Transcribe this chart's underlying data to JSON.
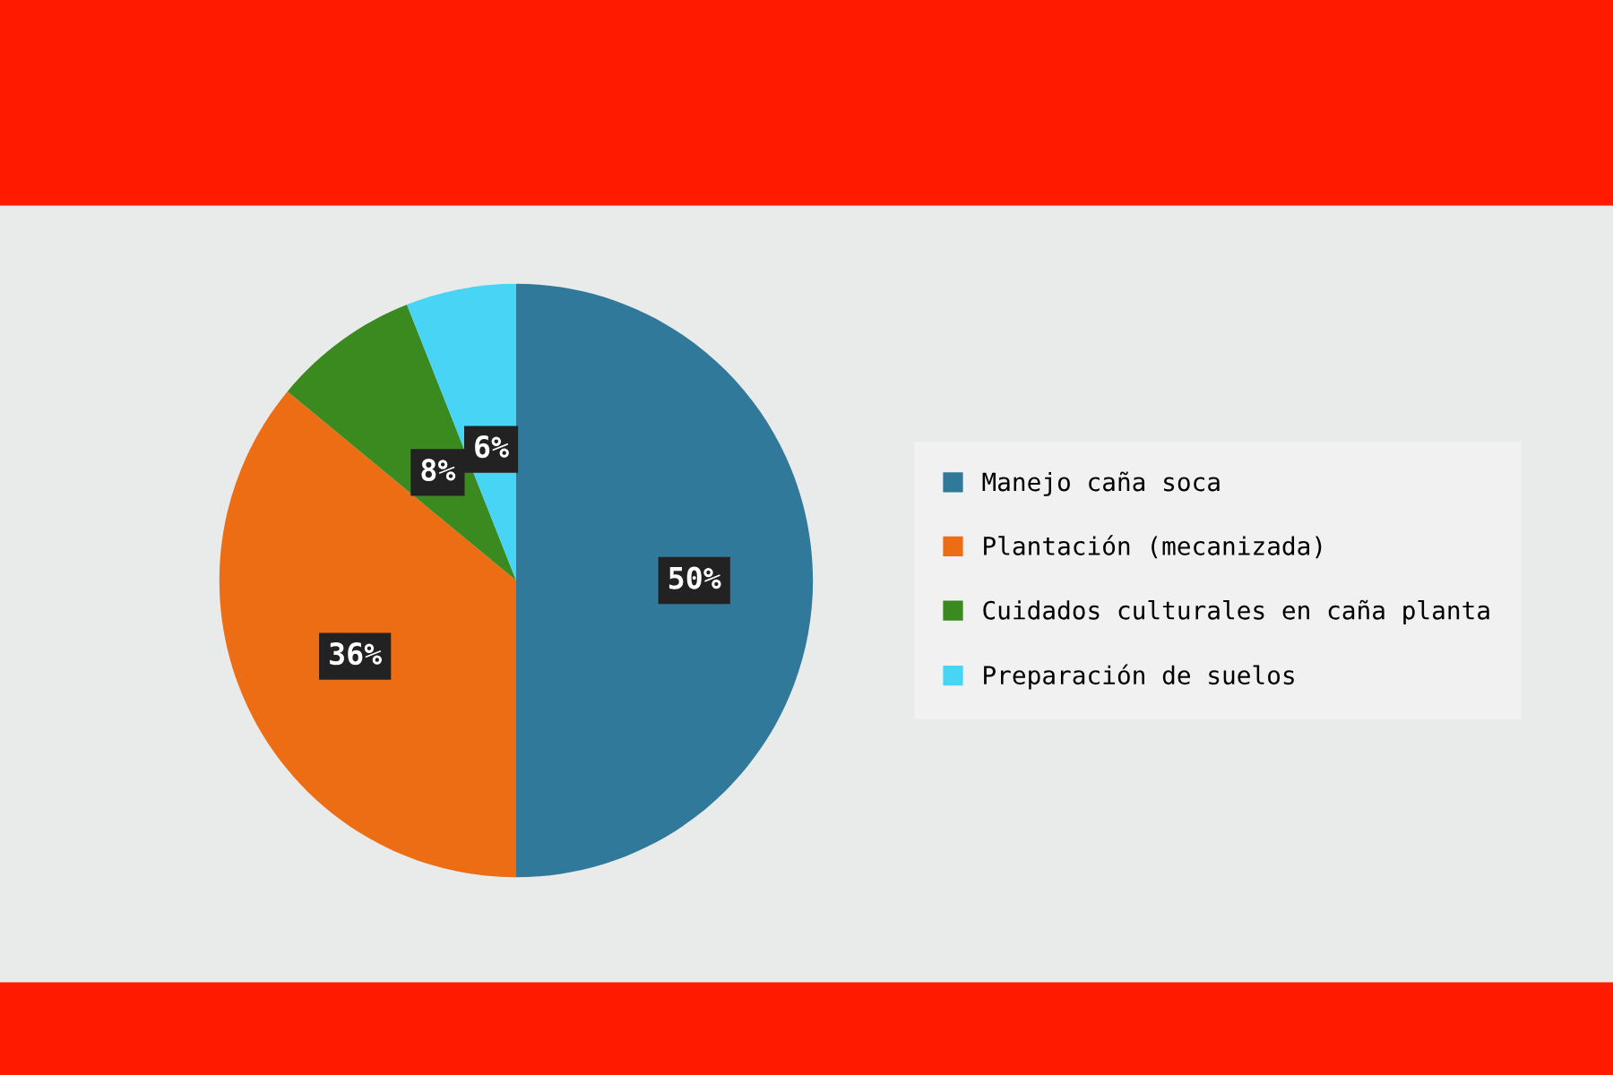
{
  "chart_data": {
    "type": "pie",
    "categories": [
      "Manejo caña soca",
      "Plantación (mecanizada)",
      "Cuidados culturales en caña planta",
      "Preparación de suelos"
    ],
    "values": [
      50,
      36,
      8,
      6
    ],
    "colors": [
      "#31799a",
      "#ed6d14",
      "#3a8a1f",
      "#47d4f5"
    ],
    "value_labels": [
      "50%",
      "36%",
      "8%",
      "6%"
    ],
    "legend": "right"
  }
}
